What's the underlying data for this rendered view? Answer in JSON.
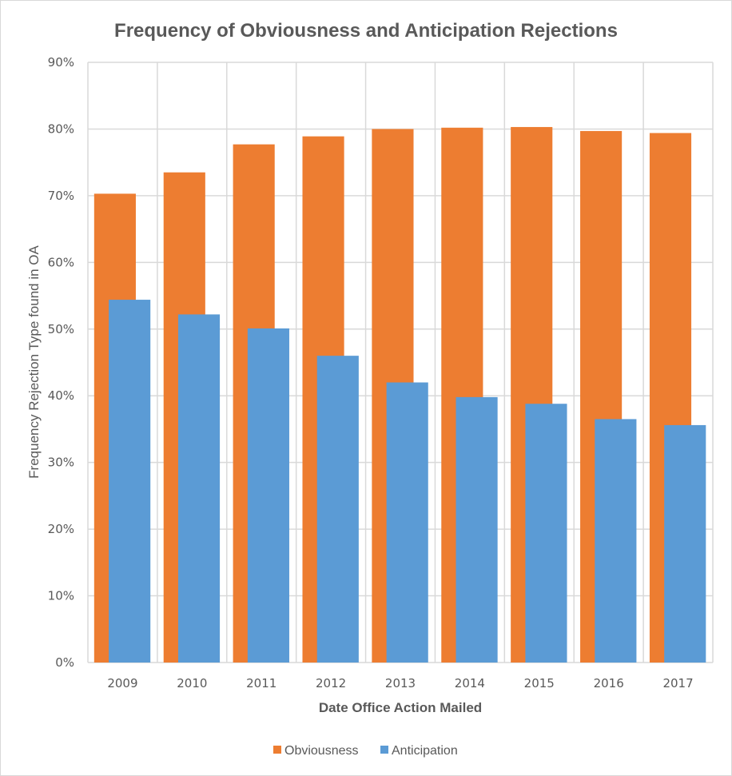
{
  "chart_data": {
    "type": "bar",
    "title": "Frequency of Obviousness and Anticipation Rejections",
    "xlabel": "Date Office Action Mailed",
    "ylabel": "Frequency Rejection Type found in OA",
    "categories": [
      "2009",
      "2010",
      "2011",
      "2012",
      "2013",
      "2014",
      "2015",
      "2016",
      "2017"
    ],
    "series": [
      {
        "name": "Obviousness",
        "color": "#ED7D31",
        "values": [
          70.3,
          73.5,
          77.7,
          78.9,
          80.0,
          80.2,
          80.3,
          79.7,
          79.4
        ]
      },
      {
        "name": "Anticipation",
        "color": "#5B9BD5",
        "values": [
          54.4,
          52.2,
          50.1,
          46.0,
          42.0,
          39.8,
          38.8,
          36.5,
          35.6
        ]
      }
    ],
    "ylim": [
      0,
      90
    ],
    "yticks": [
      0,
      10,
      20,
      30,
      40,
      50,
      60,
      70,
      80,
      90
    ],
    "ytick_labels": [
      "0%",
      "10%",
      "20%",
      "30%",
      "40%",
      "50%",
      "60%",
      "70%",
      "80%",
      "90%"
    ],
    "grid": true,
    "bars_overlap": true,
    "legend_position": "bottom"
  }
}
